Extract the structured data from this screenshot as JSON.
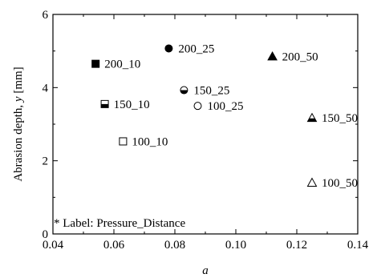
{
  "chart_data": {
    "type": "scatter",
    "xlabel": "a",
    "ylabel_main": "Abrasion depth, ",
    "ylabel_var": "y",
    "ylabel_unit": " [mm]",
    "xlim": [
      0.04,
      0.14
    ],
    "ylim": [
      0,
      6
    ],
    "xticks": [
      0.04,
      0.06,
      0.08,
      0.1,
      0.12,
      0.14
    ],
    "xtick_labels": [
      "0.04",
      "0.06",
      "0.08",
      "0.10",
      "0.12",
      "0.14"
    ],
    "yticks": [
      0,
      2,
      4,
      6
    ],
    "ytick_labels": [
      "0",
      "2",
      "4",
      "6"
    ],
    "grid": false,
    "annotation": "* Label: Pressure_Distance",
    "points": [
      {
        "label": "200_10",
        "x": 0.054,
        "y": 4.65,
        "marker": "square",
        "fill": "full",
        "label_side": "right"
      },
      {
        "label": "200_25",
        "x": 0.078,
        "y": 5.07,
        "marker": "circle",
        "fill": "full",
        "label_side": "right"
      },
      {
        "label": "200_50",
        "x": 0.112,
        "y": 4.85,
        "marker": "triangle",
        "fill": "full",
        "label_side": "right"
      },
      {
        "label": "150_10",
        "x": 0.057,
        "y": 3.55,
        "marker": "square",
        "fill": "half",
        "label_side": "right"
      },
      {
        "label": "150_25",
        "x": 0.083,
        "y": 3.93,
        "marker": "circle",
        "fill": "half",
        "label_side": "right"
      },
      {
        "label": "150_50",
        "x": 0.125,
        "y": 3.17,
        "marker": "triangle",
        "fill": "half",
        "label_side": "right"
      },
      {
        "label": "100_10",
        "x": 0.063,
        "y": 2.53,
        "marker": "square",
        "fill": "none",
        "label_side": "right"
      },
      {
        "label": "100_25",
        "x": 0.0875,
        "y": 3.5,
        "marker": "circle",
        "fill": "none",
        "label_side": "right"
      },
      {
        "label": "100_50",
        "x": 0.125,
        "y": 1.4,
        "marker": "triangle",
        "fill": "none",
        "label_side": "right"
      }
    ]
  }
}
